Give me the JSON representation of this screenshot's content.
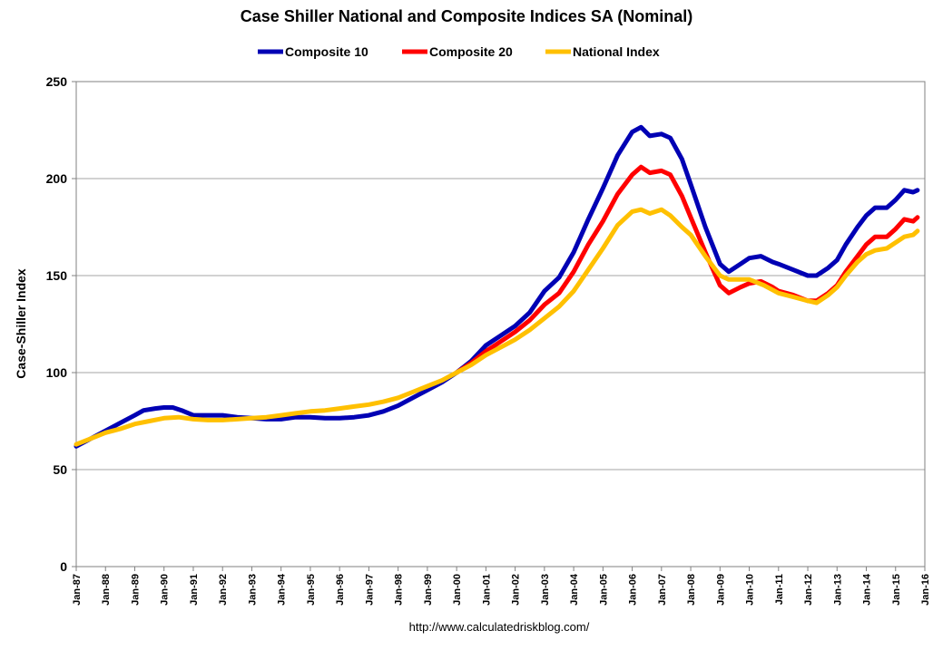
{
  "chart_data": {
    "type": "line",
    "title": "Case Shiller National and Composite Indices SA (Nominal)",
    "ylabel": "Case-Shiller Index",
    "xlabel": "",
    "ylim": [
      0,
      250
    ],
    "yticks": [
      0,
      50,
      100,
      150,
      200,
      250
    ],
    "xlim": [
      1987,
      2016
    ],
    "xticks": [
      {
        "x": 1987,
        "label": "Jan-87"
      },
      {
        "x": 1988,
        "label": "Jan-88"
      },
      {
        "x": 1989,
        "label": "Jan-89"
      },
      {
        "x": 1990,
        "label": "Jan-90"
      },
      {
        "x": 1991,
        "label": "Jan-91"
      },
      {
        "x": 1992,
        "label": "Jan-92"
      },
      {
        "x": 1993,
        "label": "Jan-93"
      },
      {
        "x": 1994,
        "label": "Jan-94"
      },
      {
        "x": 1995,
        "label": "Jan-95"
      },
      {
        "x": 1996,
        "label": "Jan-96"
      },
      {
        "x": 1997,
        "label": "Jan-97"
      },
      {
        "x": 1998,
        "label": "Jan-98"
      },
      {
        "x": 1999,
        "label": "Jan-99"
      },
      {
        "x": 2000,
        "label": "Jan-00"
      },
      {
        "x": 2001,
        "label": "Jan-01"
      },
      {
        "x": 2002,
        "label": "Jan-02"
      },
      {
        "x": 2003,
        "label": "Jan-03"
      },
      {
        "x": 2004,
        "label": "Jan-04"
      },
      {
        "x": 2005,
        "label": "Jan-05"
      },
      {
        "x": 2006,
        "label": "Jan-06"
      },
      {
        "x": 2007,
        "label": "Jan-07"
      },
      {
        "x": 2008,
        "label": "Jan-08"
      },
      {
        "x": 2009,
        "label": "Jan-09"
      },
      {
        "x": 2010,
        "label": "Jan-10"
      },
      {
        "x": 2011,
        "label": "Jan-11"
      },
      {
        "x": 2012,
        "label": "Jan-12"
      },
      {
        "x": 2013,
        "label": "Jan-13"
      },
      {
        "x": 2014,
        "label": "Jan-14"
      },
      {
        "x": 2015,
        "label": "Jan-15"
      },
      {
        "x": 2016,
        "label": "Jan-16"
      }
    ],
    "grid": "horizontal",
    "legend_position": "top-center",
    "source": "http://www.calculatedriskblog.com/",
    "series": [
      {
        "name": "Composite 10",
        "color": "#0000b4",
        "points": [
          [
            1987.0,
            62
          ],
          [
            1987.5,
            66
          ],
          [
            1988.0,
            70
          ],
          [
            1988.5,
            74
          ],
          [
            1989.0,
            78
          ],
          [
            1989.3,
            80.5
          ],
          [
            1989.7,
            81.5
          ],
          [
            1990.0,
            82
          ],
          [
            1990.3,
            82
          ],
          [
            1990.6,
            80.5
          ],
          [
            1991.0,
            78
          ],
          [
            1991.5,
            78
          ],
          [
            1992.0,
            78
          ],
          [
            1992.5,
            77
          ],
          [
            1993.0,
            76.5
          ],
          [
            1993.5,
            76
          ],
          [
            1994.0,
            76
          ],
          [
            1994.5,
            77
          ],
          [
            1995.0,
            77
          ],
          [
            1995.5,
            76.5
          ],
          [
            1996.0,
            76.5
          ],
          [
            1996.5,
            77
          ],
          [
            1997.0,
            78
          ],
          [
            1997.5,
            80
          ],
          [
            1998.0,
            83
          ],
          [
            1998.5,
            87
          ],
          [
            1999.0,
            91
          ],
          [
            1999.5,
            95
          ],
          [
            2000.0,
            100
          ],
          [
            2000.5,
            106
          ],
          [
            2001.0,
            114
          ],
          [
            2001.5,
            119
          ],
          [
            2002.0,
            124
          ],
          [
            2002.5,
            131
          ],
          [
            2003.0,
            142
          ],
          [
            2003.5,
            149
          ],
          [
            2004.0,
            162
          ],
          [
            2004.5,
            179
          ],
          [
            2005.0,
            195
          ],
          [
            2005.5,
            212
          ],
          [
            2006.0,
            224
          ],
          [
            2006.3,
            226.5
          ],
          [
            2006.6,
            222
          ],
          [
            2007.0,
            223
          ],
          [
            2007.3,
            221
          ],
          [
            2007.7,
            210
          ],
          [
            2008.0,
            197
          ],
          [
            2008.5,
            175
          ],
          [
            2009.0,
            156
          ],
          [
            2009.3,
            152
          ],
          [
            2009.7,
            156
          ],
          [
            2010.0,
            159
          ],
          [
            2010.4,
            160
          ],
          [
            2010.8,
            157
          ],
          [
            2011.0,
            156
          ],
          [
            2011.5,
            153
          ],
          [
            2012.0,
            150
          ],
          [
            2012.3,
            150
          ],
          [
            2012.7,
            154
          ],
          [
            2013.0,
            158
          ],
          [
            2013.3,
            166
          ],
          [
            2013.7,
            175
          ],
          [
            2014.0,
            181
          ],
          [
            2014.3,
            185
          ],
          [
            2014.7,
            185
          ],
          [
            2015.0,
            189
          ],
          [
            2015.3,
            194
          ],
          [
            2015.6,
            193
          ],
          [
            2015.75,
            194
          ]
        ]
      },
      {
        "name": "Composite 20",
        "color": "#ff0000",
        "points": [
          [
            2000.0,
            100
          ],
          [
            2000.5,
            105
          ],
          [
            2001.0,
            111
          ],
          [
            2001.5,
            116
          ],
          [
            2002.0,
            121
          ],
          [
            2002.5,
            127
          ],
          [
            2003.0,
            135
          ],
          [
            2003.5,
            141
          ],
          [
            2004.0,
            152
          ],
          [
            2004.5,
            166
          ],
          [
            2005.0,
            178
          ],
          [
            2005.5,
            192
          ],
          [
            2006.0,
            202
          ],
          [
            2006.3,
            206
          ],
          [
            2006.6,
            203
          ],
          [
            2007.0,
            204
          ],
          [
            2007.3,
            202
          ],
          [
            2007.7,
            191
          ],
          [
            2008.0,
            180
          ],
          [
            2008.5,
            162
          ],
          [
            2009.0,
            145
          ],
          [
            2009.3,
            141
          ],
          [
            2009.7,
            144
          ],
          [
            2010.0,
            146
          ],
          [
            2010.4,
            147
          ],
          [
            2010.8,
            144
          ],
          [
            2011.0,
            142
          ],
          [
            2011.5,
            140
          ],
          [
            2012.0,
            137
          ],
          [
            2012.3,
            137
          ],
          [
            2012.7,
            141
          ],
          [
            2013.0,
            145
          ],
          [
            2013.3,
            152
          ],
          [
            2013.7,
            160
          ],
          [
            2014.0,
            166
          ],
          [
            2014.3,
            170
          ],
          [
            2014.7,
            170
          ],
          [
            2015.0,
            174
          ],
          [
            2015.3,
            179
          ],
          [
            2015.6,
            178
          ],
          [
            2015.75,
            180
          ]
        ]
      },
      {
        "name": "National Index",
        "color": "#ffc000",
        "points": [
          [
            1987.0,
            63
          ],
          [
            1987.5,
            66
          ],
          [
            1988.0,
            69
          ],
          [
            1988.5,
            71
          ],
          [
            1989.0,
            73.5
          ],
          [
            1989.5,
            75
          ],
          [
            1990.0,
            76.5
          ],
          [
            1990.5,
            77
          ],
          [
            1991.0,
            76
          ],
          [
            1991.5,
            75.5
          ],
          [
            1992.0,
            75.5
          ],
          [
            1992.5,
            76
          ],
          [
            1993.0,
            76.5
          ],
          [
            1993.5,
            77
          ],
          [
            1994.0,
            78
          ],
          [
            1994.5,
            79
          ],
          [
            1995.0,
            80
          ],
          [
            1995.5,
            80.5
          ],
          [
            1996.0,
            81.5
          ],
          [
            1996.5,
            82.5
          ],
          [
            1997.0,
            83.5
          ],
          [
            1997.5,
            85
          ],
          [
            1998.0,
            87
          ],
          [
            1998.5,
            90
          ],
          [
            1999.0,
            93
          ],
          [
            1999.5,
            96
          ],
          [
            2000.0,
            100
          ],
          [
            2000.5,
            104
          ],
          [
            2001.0,
            109
          ],
          [
            2001.5,
            113
          ],
          [
            2002.0,
            117
          ],
          [
            2002.5,
            122
          ],
          [
            2003.0,
            128
          ],
          [
            2003.5,
            134
          ],
          [
            2004.0,
            142
          ],
          [
            2004.5,
            153
          ],
          [
            2005.0,
            164
          ],
          [
            2005.5,
            176
          ],
          [
            2006.0,
            183
          ],
          [
            2006.3,
            184
          ],
          [
            2006.6,
            182
          ],
          [
            2007.0,
            184
          ],
          [
            2007.3,
            181
          ],
          [
            2007.7,
            175
          ],
          [
            2008.0,
            171
          ],
          [
            2008.5,
            160
          ],
          [
            2009.0,
            150
          ],
          [
            2009.3,
            148
          ],
          [
            2009.7,
            148
          ],
          [
            2010.0,
            148
          ],
          [
            2010.5,
            145
          ],
          [
            2011.0,
            141
          ],
          [
            2011.5,
            139
          ],
          [
            2012.0,
            137
          ],
          [
            2012.3,
            136
          ],
          [
            2012.7,
            140
          ],
          [
            2013.0,
            144
          ],
          [
            2013.3,
            150
          ],
          [
            2013.7,
            157
          ],
          [
            2014.0,
            161
          ],
          [
            2014.3,
            163
          ],
          [
            2014.7,
            164
          ],
          [
            2015.0,
            167
          ],
          [
            2015.3,
            170
          ],
          [
            2015.6,
            171
          ],
          [
            2015.75,
            173
          ]
        ]
      }
    ]
  }
}
